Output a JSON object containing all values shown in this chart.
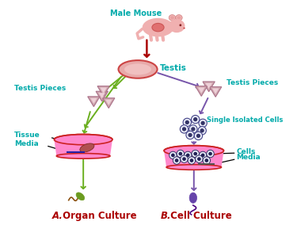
{
  "bg_color": "#ffffff",
  "teal": "#00AAAA",
  "dark_red": "#AA0000",
  "green": "#6BAF1F",
  "purple": "#7755AA",
  "pink_fill": "#FF88CC",
  "red_border": "#CC2222",
  "mouse_color": "#F0B0B0",
  "label_A": "A.",
  "label_A2": " Organ Culture",
  "label_B": "B.",
  "label_B2": " Cell Culture",
  "male_mouse_label": "Male Mouse",
  "testis_label": "Testis",
  "testis_pieces_left": "Testis Pieces",
  "testis_pieces_right": "Testis Pieces",
  "single_isolated_label": "Single Isolated Cells",
  "tissue_label": "Tissue",
  "media_label_left": "Media",
  "cells_label": "Cells",
  "media_label_right": "Media",
  "fig_w": 3.75,
  "fig_h": 2.89,
  "dpi": 100,
  "xmax": 375,
  "ymax": 289
}
